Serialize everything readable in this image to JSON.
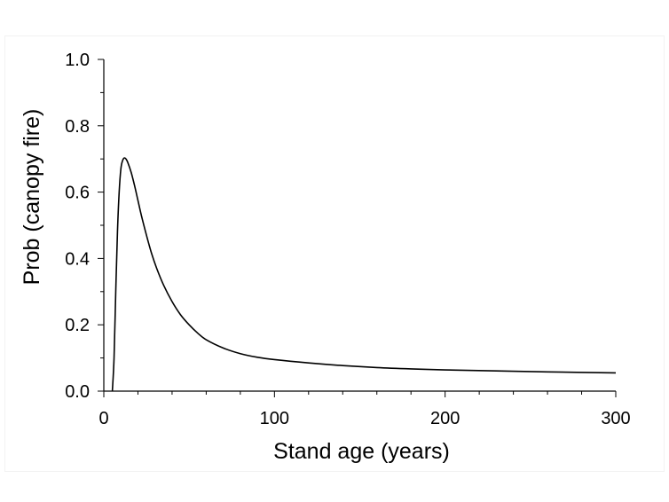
{
  "chart_data": {
    "type": "line",
    "title": "",
    "xlabel": "Stand age (years)",
    "ylabel": "Prob (canopy fire)",
    "xlim": [
      0,
      300
    ],
    "ylim": [
      0,
      1.0
    ],
    "xticks": [
      0,
      100,
      200,
      300
    ],
    "xtick_labels": [
      "0",
      "100",
      "200",
      "300"
    ],
    "yticks": [
      0,
      0.2,
      0.4,
      0.6,
      0.8,
      1.0
    ],
    "ytick_labels": [
      "0.0",
      "0.2",
      "0.4",
      "0.6",
      "0.8",
      "1.0"
    ],
    "y_minor_step": 0.1,
    "x_minor_step": 20,
    "grid": false,
    "line_color": "#000000",
    "series": [
      {
        "x": [
          5,
          6,
          7,
          8,
          9,
          10,
          11,
          12,
          13,
          14,
          16,
          18,
          20,
          22,
          25,
          28,
          31,
          35,
          40,
          45,
          50,
          55,
          60,
          70,
          80,
          90,
          100,
          120,
          140,
          160,
          180,
          200,
          230,
          260,
          300
        ],
        "y": [
          0.0,
          0.1,
          0.3,
          0.48,
          0.6,
          0.67,
          0.695,
          0.703,
          0.7,
          0.69,
          0.66,
          0.62,
          0.575,
          0.53,
          0.47,
          0.415,
          0.37,
          0.32,
          0.27,
          0.23,
          0.2,
          0.175,
          0.155,
          0.13,
          0.113,
          0.102,
          0.095,
          0.085,
          0.077,
          0.071,
          0.067,
          0.064,
          0.061,
          0.058,
          0.055
        ]
      }
    ]
  }
}
